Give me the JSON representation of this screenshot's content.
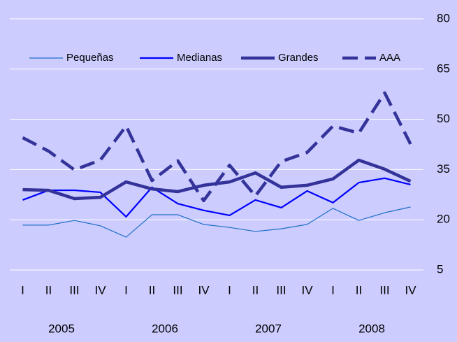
{
  "chart_data": {
    "type": "line",
    "categories": [
      "I",
      "II",
      "III",
      "IV",
      "I",
      "II",
      "III",
      "IV",
      "I",
      "II",
      "III",
      "IV",
      "I",
      "II",
      "III",
      "IV"
    ],
    "years": [
      "2005",
      "2006",
      "2007",
      "2008"
    ],
    "series": [
      {
        "name": "Pequeñas",
        "color": "#1f6fc8",
        "width": 1.2,
        "dash": false,
        "values": [
          18.4,
          18.4,
          19.8,
          18.2,
          14.8,
          21.5,
          21.5,
          18.6,
          17.7,
          16.5,
          17.3,
          18.6,
          23.4,
          19.8,
          22.1,
          23.8
        ]
      },
      {
        "name": "Medianas",
        "color": "#0000ff",
        "width": 2.2,
        "dash": false,
        "values": [
          25.9,
          28.8,
          28.8,
          28.2,
          20.9,
          29.7,
          24.8,
          22.8,
          21.3,
          25.9,
          23.6,
          28.6,
          25.1,
          31.1,
          32.4,
          30.5
        ]
      },
      {
        "name": "Grandes",
        "color": "#333399",
        "width": 4.5,
        "dash": false,
        "values": [
          29.0,
          28.8,
          26.3,
          26.7,
          31.3,
          29.2,
          28.4,
          30.3,
          31.3,
          34.0,
          29.7,
          30.3,
          32.2,
          37.8,
          35.1,
          31.5
        ]
      },
      {
        "name": "AAA",
        "color": "#333399",
        "width": 4.5,
        "dash": true,
        "values": [
          44.5,
          40.5,
          34.9,
          37.8,
          48.0,
          31.7,
          37.6,
          25.7,
          36.3,
          27.1,
          37.4,
          40.1,
          48.0,
          45.9,
          57.9,
          42.6
        ]
      }
    ],
    "ylim": [
      5,
      80
    ],
    "yticks": [
      5,
      20,
      35,
      50,
      65,
      80
    ],
    "grid": true,
    "legend": "top"
  }
}
